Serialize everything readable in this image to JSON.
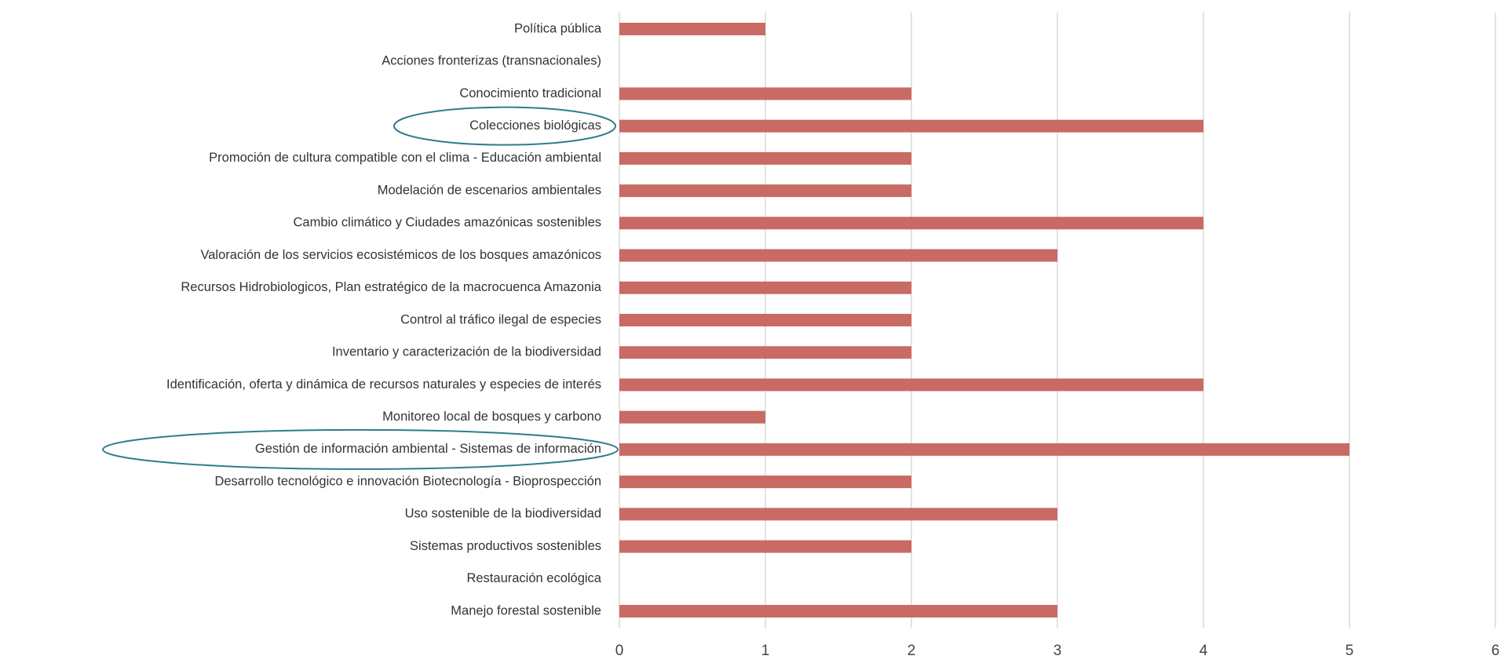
{
  "chart_data": {
    "type": "bar",
    "orientation": "horizontal",
    "categories": [
      "Política pública",
      "Acciones fronterizas (transnacionales)",
      "Conocimiento tradicional",
      "Colecciones biológicas",
      "Promoción de cultura compatible con el clima - Educación ambiental",
      "Modelación  de escenarios ambientales",
      "Cambio climático y Ciudades amazónicas sostenibles",
      "Valoración de los servicios ecosistémicos de los bosques amazónicos",
      "Recursos Hidrobiologicos, Plan estratégico de la macrocuenca Amazonia",
      "Control al tráfico ilegal de especies",
      "Inventario y caracterización de la biodiversidad",
      "Identificación, oferta y dinámica de recursos naturales y especies de interés",
      "Monitoreo local de bosques y carbono",
      "Gestión de información ambiental - Sistemas de información",
      "Desarrollo tecnológico e innovación  Biotecnología - Bioprospección",
      "Uso sostenible de la biodiversidad",
      "Sistemas productivos sostenibles",
      "Restauración ecológica",
      "Manejo forestal sostenible"
    ],
    "values": [
      1,
      0,
      2,
      4,
      2,
      2,
      4,
      3,
      2,
      2,
      2,
      4,
      1,
      5,
      2,
      3,
      2,
      0,
      3
    ],
    "color": "#c96a64",
    "xlim": [
      0,
      6
    ],
    "xticks": [
      0,
      1,
      2,
      3,
      4,
      5,
      6
    ],
    "grid": true
  }
}
